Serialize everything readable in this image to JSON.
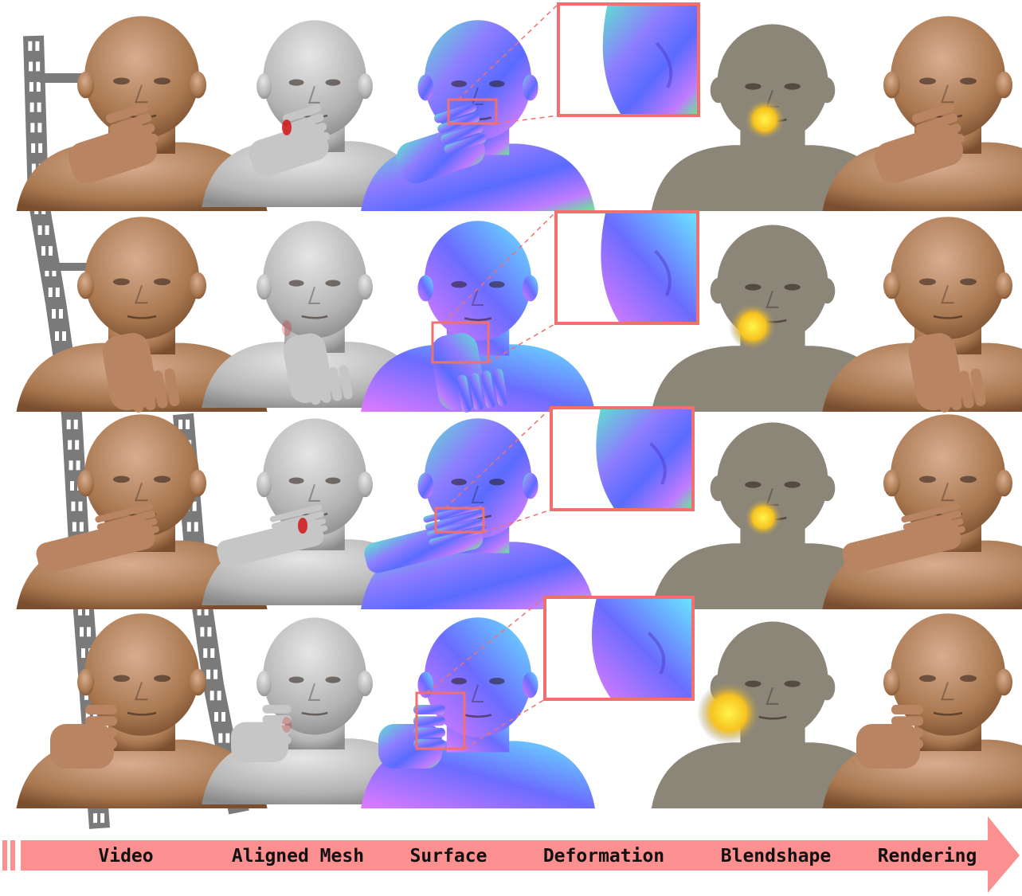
{
  "pipeline": {
    "stages": [
      {
        "id": "video",
        "label": "Video"
      },
      {
        "id": "aligned-mesh",
        "label": "Aligned Mesh"
      },
      {
        "id": "surface",
        "label": "Surface"
      },
      {
        "id": "deformation",
        "label": "Deformation"
      },
      {
        "id": "blendshape",
        "label": "Blendshape"
      },
      {
        "id": "rendering",
        "label": "Rendering"
      }
    ]
  },
  "colors": {
    "arrow": "#fc8f8f",
    "zoom_box": "#f26f6f",
    "skin": "#c99a7a",
    "skin_dark": "#8b5e3c",
    "mesh": "#bdbdbd",
    "blendshape_base": "#8c8678",
    "blendshape_hot": "#ffe21a",
    "film": "#7a7a7a"
  },
  "rows": [
    {
      "gesture": "finger-on-cheek-left"
    },
    {
      "gesture": "hands-on-chin"
    },
    {
      "gesture": "palm-on-cheek"
    },
    {
      "gesture": "fist-on-cheek"
    }
  ]
}
